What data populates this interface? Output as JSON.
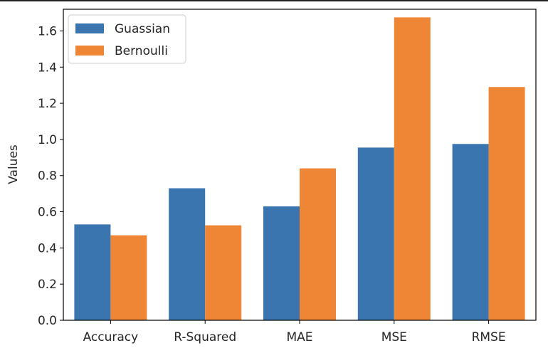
{
  "chart_data": {
    "type": "bar",
    "title": "",
    "xlabel": "",
    "ylabel": "Values",
    "categories": [
      "Accuracy",
      "R-Squared",
      "MAE",
      "MSE",
      "RMSE"
    ],
    "series": [
      {
        "name": "Guassian",
        "color": "#3a75b0",
        "values": [
          0.53,
          0.73,
          0.63,
          0.955,
          0.975
        ]
      },
      {
        "name": "Bernoulli",
        "color": "#ef8636",
        "values": [
          0.47,
          0.525,
          0.84,
          1.675,
          1.29
        ]
      }
    ],
    "ylim": [
      0,
      1.72
    ],
    "yticks": [
      "0.0",
      "0.2",
      "0.4",
      "0.6",
      "0.8",
      "1.0",
      "1.2",
      "1.4",
      "1.6"
    ],
    "legend": "top-left",
    "grid": false
  }
}
